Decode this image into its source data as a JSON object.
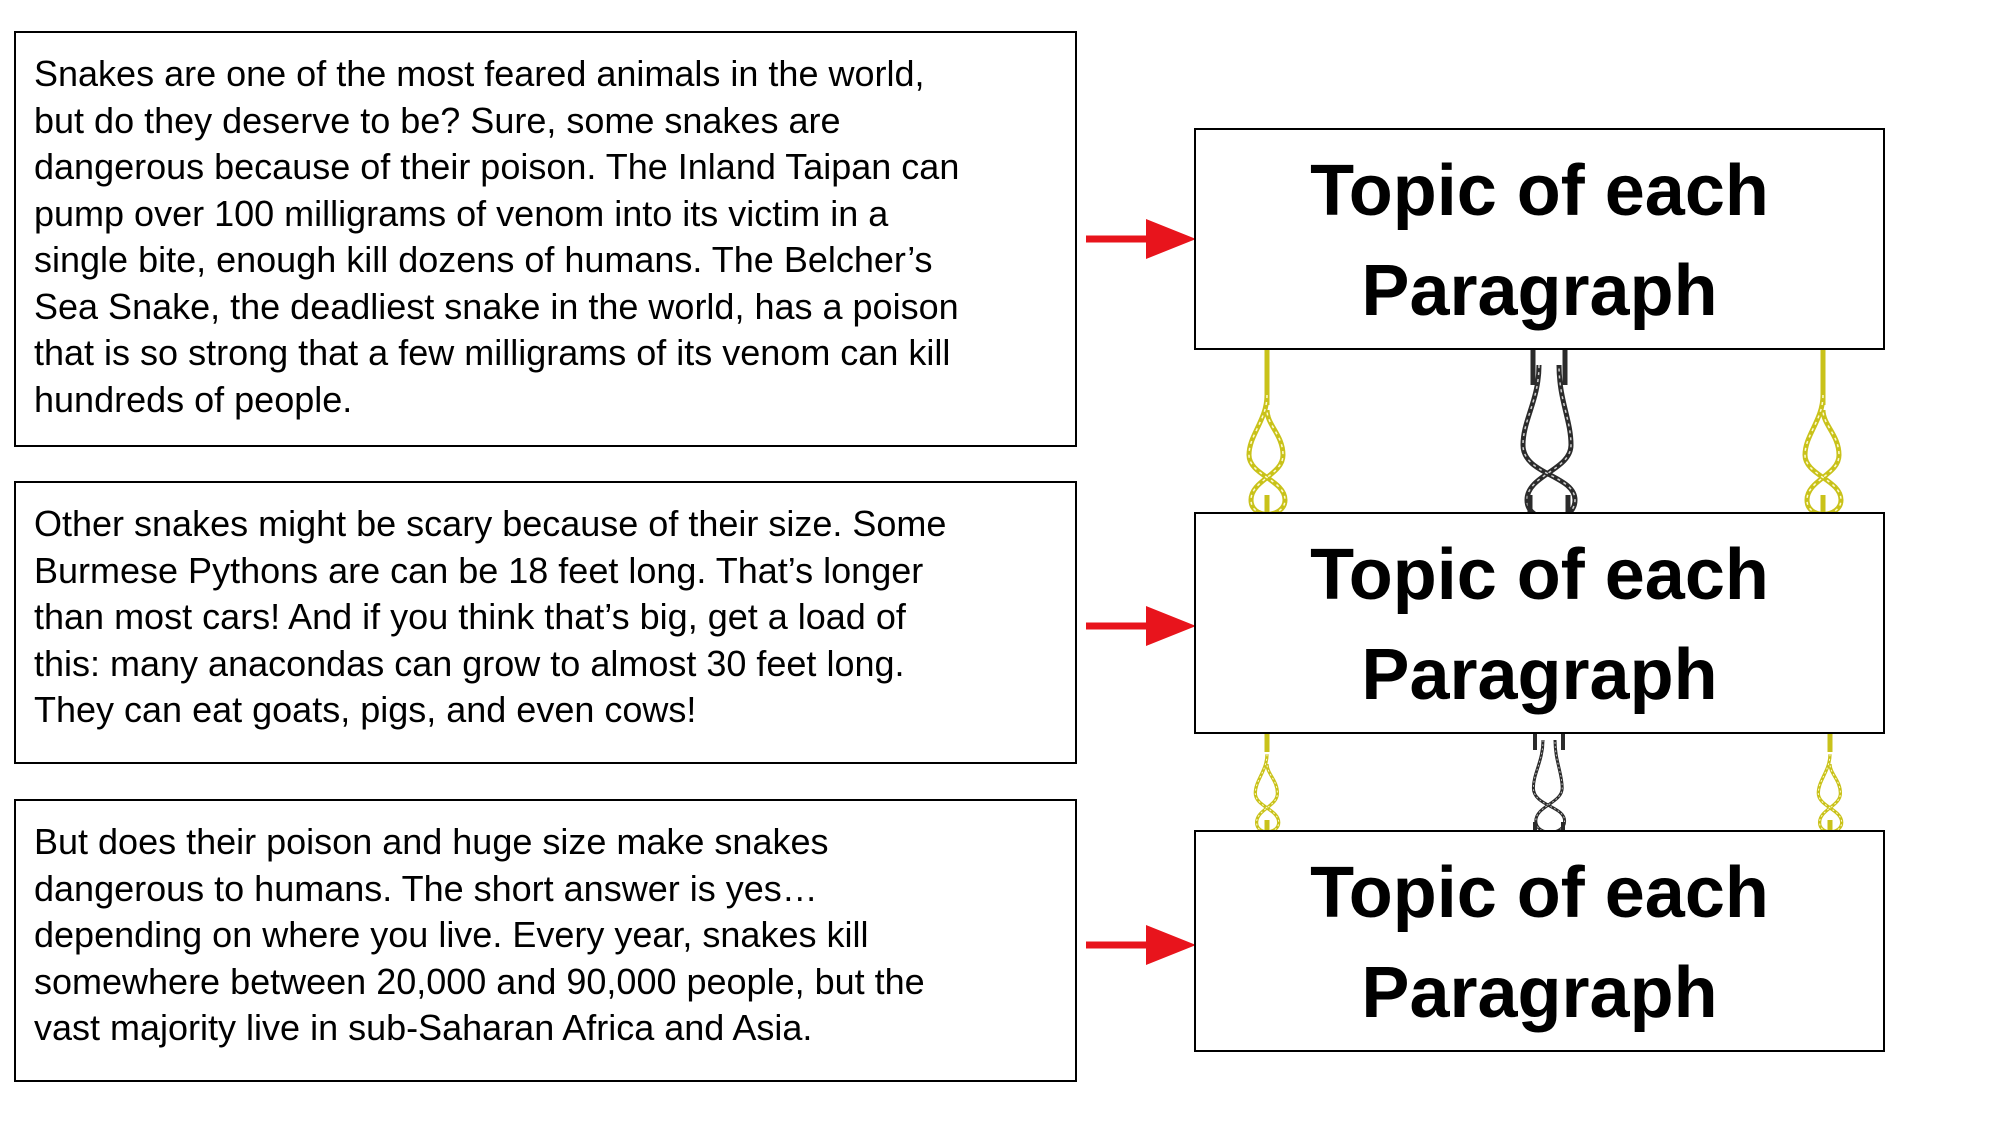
{
  "paragraphs": [
    {
      "lines": [
        "Snakes are one of the most feared animals in the world,",
        "but do they deserve to be?  Sure, some snakes are",
        "dangerous because of their poison.  The Inland Taipan can",
        "pump over 100 milligrams of venom into its victim in a",
        "single bite, enough kill dozens of humans.  The Belcher’s",
        "Sea Snake, the deadliest snake in the world, has a poison",
        "that is so strong that a few milligrams of its venom can kill",
        "hundreds of people."
      ]
    },
    {
      "lines": [
        "Other snakes might be scary because of their size.  Some",
        "Burmese Pythons are can be 18 feet long.  That’s longer",
        "than most cars!  And if you think that’s big, get a load of",
        "this: many anacondas can grow to almost 30 feet long.",
        "They can eat goats, pigs, and even cows!"
      ]
    },
    {
      "lines": [
        "But does their poison and huge size make snakes",
        "dangerous to humans.  The short answer is yes…",
        "depending on where you live.  Every year, snakes kill",
        "somewhere between 20,000 and 90,000 people, but the",
        "vast majority live in sub-Saharan Africa and Asia."
      ]
    }
  ],
  "topics": [
    {
      "line1": "Topic of each",
      "line2": "Paragraph"
    },
    {
      "line1": "Topic of each",
      "line2": "Paragraph"
    },
    {
      "line1": "Topic of each",
      "line2": "Paragraph"
    }
  ],
  "colors": {
    "arrow": "#e8141c",
    "rope_yellow": "#c9c21a",
    "rope_dark": "#2b2b2b"
  },
  "icons": {
    "arrow": "right-arrow-icon",
    "rope_knot": "figure-eight-knot-icon"
  }
}
